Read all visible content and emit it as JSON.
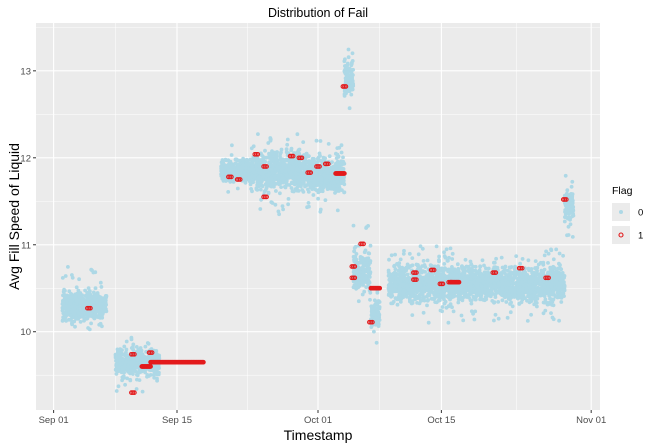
{
  "chart_data": {
    "type": "scatter",
    "title": "Distribution of Fail",
    "xlabel": "Timestamp",
    "ylabel": "Avg Fill Speed of Liquid",
    "x_ticks": [
      "Sep 01",
      "Sep 15",
      "Oct 01",
      "Oct 15",
      "Nov 01"
    ],
    "y_ticks": [
      "10",
      "11",
      "12",
      "13"
    ],
    "xlim": [
      "2017-08-30",
      "2017-11-02"
    ],
    "ylim": [
      9.1,
      13.55
    ],
    "grid": true,
    "legend": {
      "title": "Flag",
      "position": "right",
      "entries": [
        "0",
        "1"
      ]
    },
    "colors": {
      "flag_0": "#add8e6",
      "flag_1": "#e31a1c",
      "panel": "#ebebeb",
      "grid": "#ffffff"
    },
    "series": [
      {
        "name": "0",
        "clusters": [
          {
            "x_start": "2017-09-02",
            "x_end": "2017-09-07",
            "y_min": 10.0,
            "y_max": 10.75,
            "y_mid": 10.3
          },
          {
            "x_start": "2017-09-08",
            "x_end": "2017-09-13",
            "y_min": 9.3,
            "y_max": 9.95,
            "y_mid": 9.65
          },
          {
            "x_start": "2017-09-20",
            "x_end": "2017-09-24",
            "y_min": 11.6,
            "y_max": 12.15,
            "y_mid": 11.85
          },
          {
            "x_start": "2017-09-24",
            "x_end": "2017-09-30",
            "y_min": 11.35,
            "y_max": 12.3,
            "y_mid": 11.85
          },
          {
            "x_start": "2017-09-30",
            "x_end": "2017-10-04",
            "y_min": 11.3,
            "y_max": 12.2,
            "y_mid": 11.8
          },
          {
            "x_start": "2017-10-04",
            "x_end": "2017-10-05",
            "y_min": 12.45,
            "y_max": 13.45,
            "y_mid": 12.9
          },
          {
            "x_start": "2017-10-05",
            "x_end": "2017-10-07",
            "y_min": 10.35,
            "y_max": 11.25,
            "y_mid": 10.7
          },
          {
            "x_start": "2017-10-07",
            "x_end": "2017-10-08",
            "y_min": 9.85,
            "y_max": 10.55,
            "y_mid": 10.2
          },
          {
            "x_start": "2017-10-09",
            "x_end": "2017-10-19",
            "y_min": 10.1,
            "y_max": 11.0,
            "y_mid": 10.55
          },
          {
            "x_start": "2017-10-19",
            "x_end": "2017-10-29",
            "y_min": 10.1,
            "y_max": 10.95,
            "y_mid": 10.55
          },
          {
            "x_start": "2017-10-29",
            "x_end": "2017-10-30",
            "y_min": 11.05,
            "y_max": 11.8,
            "y_mid": 11.45
          }
        ]
      },
      {
        "name": "1",
        "points": [
          {
            "x": "2017-09-05",
            "y": 10.27
          },
          {
            "x": "2017-09-10",
            "y": 9.74
          },
          {
            "x": "2017-09-10",
            "y": 9.3
          },
          {
            "x": "2017-09-12",
            "y": 9.76
          },
          {
            "x": "2017-09-21",
            "y": 11.78
          },
          {
            "x": "2017-09-22",
            "y": 11.75
          },
          {
            "x": "2017-09-24",
            "y": 12.04
          },
          {
            "x": "2017-09-25",
            "y": 11.9
          },
          {
            "x": "2017-09-25",
            "y": 11.55
          },
          {
            "x": "2017-09-28",
            "y": 12.02
          },
          {
            "x": "2017-09-29",
            "y": 12.0
          },
          {
            "x": "2017-09-30",
            "y": 11.83
          },
          {
            "x": "2017-10-01",
            "y": 11.9
          },
          {
            "x": "2017-10-02",
            "y": 11.93
          },
          {
            "x": "2017-10-04",
            "y": 12.82
          },
          {
            "x": "2017-10-05",
            "y": 10.75
          },
          {
            "x": "2017-10-05",
            "y": 10.62
          },
          {
            "x": "2017-10-06",
            "y": 11.01
          },
          {
            "x": "2017-10-07",
            "y": 10.11
          },
          {
            "x": "2017-10-12",
            "y": 10.6
          },
          {
            "x": "2017-10-12",
            "y": 10.68
          },
          {
            "x": "2017-10-14",
            "y": 10.71
          },
          {
            "x": "2017-10-15",
            "y": 10.55
          },
          {
            "x": "2017-10-16",
            "y": 10.57
          },
          {
            "x": "2017-10-21",
            "y": 10.68
          },
          {
            "x": "2017-10-24",
            "y": 10.73
          },
          {
            "x": "2017-10-27",
            "y": 10.62
          },
          {
            "x": "2017-10-29",
            "y": 11.52
          }
        ],
        "runs": [
          {
            "x_start": "2017-09-11",
            "x_end": "2017-09-12",
            "y": 9.6
          },
          {
            "x_start": "2017-09-12",
            "x_end": "2017-09-18",
            "y": 9.65
          },
          {
            "x_start": "2017-10-03",
            "x_end": "2017-10-04",
            "y": 11.82
          },
          {
            "x_start": "2017-10-07",
            "x_end": "2017-10-08",
            "y": 10.5
          },
          {
            "x_start": "2017-10-16",
            "x_end": "2017-10-17",
            "y": 10.57
          }
        ]
      }
    ]
  }
}
